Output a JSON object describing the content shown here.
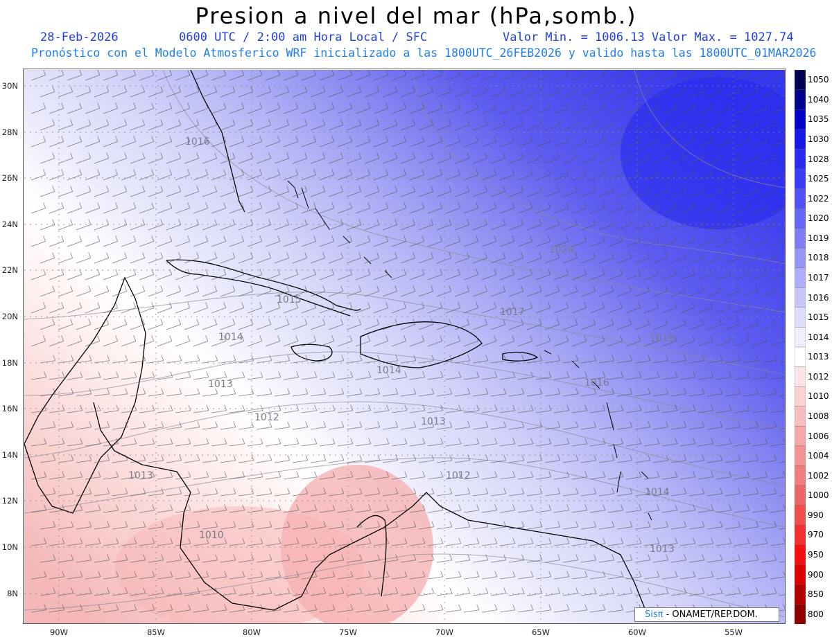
{
  "title": "Presion a nivel del mar (hPa,somb.)",
  "date": "28-Feb-2026",
  "time_info": "0600 UTC / 2:00 am Hora Local / SFC",
  "min_max": "Valor Min. = 1006.13  Valor Max. = 1027.74",
  "forecast_info": "Pronóstico con el Modelo Atmosferico WRF inicializado a las 1800UTC_26FEB2026 y valido hasta las  1800UTC_01MAR2026",
  "lat_labels": [
    "30N",
    "28N",
    "26N",
    "24N",
    "22N",
    "20N",
    "18N",
    "16N",
    "14N",
    "12N",
    "10N",
    "8N"
  ],
  "lon_labels": [
    "90W",
    "85W",
    "80W",
    "75W",
    "70W",
    "65W",
    "60W",
    "55W"
  ],
  "contour_labels": [
    "1016",
    "1020",
    "1015",
    "1017",
    "1018",
    "1014",
    "1014",
    "1013",
    "1016",
    "1012",
    "1013",
    "1013",
    "1012",
    "1014",
    "1010",
    "1013"
  ],
  "credit": {
    "logo": "Sisπ",
    "text": " - ONAMET/REP.DOM."
  },
  "colorbar": {
    "labels": [
      "1050",
      "1040",
      "1035",
      "1030",
      "1028",
      "1025",
      "1022",
      "1020",
      "1019",
      "1018",
      "1017",
      "1016",
      "1015",
      "1014",
      "1013",
      "1012",
      "1010",
      "1008",
      "1006",
      "1004",
      "1002",
      "1000",
      "990",
      "970",
      "950",
      "900",
      "850",
      "800"
    ],
    "colors": [
      "#000050",
      "#00008c",
      "#0000c8",
      "#1818e6",
      "#2a2af0",
      "#3c3cf4",
      "#5050f4",
      "#6666f4",
      "#7e7ef4",
      "#9696f6",
      "#aeaef8",
      "#c6c6fa",
      "#dcdcfc",
      "#eeeefe",
      "#ffffff",
      "#fde4e4",
      "#fbd2d2",
      "#f8bebe",
      "#f5a8a8",
      "#f29494",
      "#ef7e7e",
      "#ec6868",
      "#ee4e4e",
      "#f22e2e",
      "#f41010",
      "#dc0000",
      "#b40000",
      "#8c0000"
    ]
  }
}
